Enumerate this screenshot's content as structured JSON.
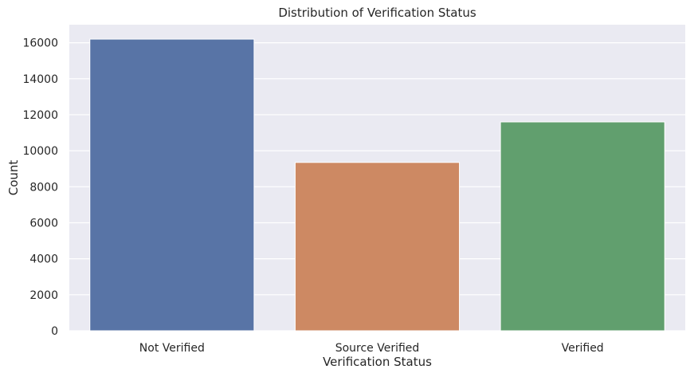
{
  "chart_data": {
    "type": "bar",
    "title": "Distribution of Verification Status",
    "xlabel": "Verification Status",
    "ylabel": "Count",
    "categories": [
      "Not Verified",
      "Source Verified",
      "Verified"
    ],
    "values": [
      16200,
      9350,
      11600
    ],
    "ylim": [
      0,
      17000
    ],
    "yticks": [
      0,
      2000,
      4000,
      6000,
      8000,
      10000,
      12000,
      14000,
      16000
    ],
    "grid": true,
    "colors": {
      "plot_background": "#eaeaf2",
      "grid": "#ffffff",
      "bars": [
        "#5874a6",
        "#cd8963",
        "#619f6e"
      ]
    }
  }
}
